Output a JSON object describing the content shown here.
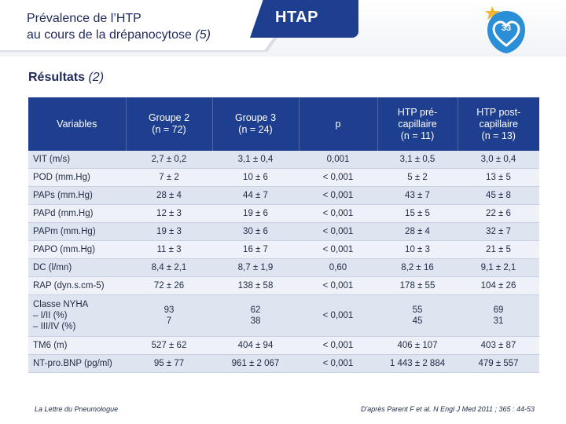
{
  "slide": {
    "title_line1": "Prévalence de l’HTP",
    "title_line2_main": "au cours de la drépanocytose",
    "title_line2_ref": " (5)",
    "topic": "HTAP",
    "page_number": "33",
    "logo_icon": "heart-badge-icon",
    "accent_color": "#1e3f8f"
  },
  "section": {
    "title": "Résultats",
    "ref": " (2)"
  },
  "table": {
    "headers": [
      [
        "Variables"
      ],
      [
        "Groupe 2",
        "(n = 72)"
      ],
      [
        "Groupe 3",
        "(n = 24)"
      ],
      [
        "p"
      ],
      [
        "HTP pré-",
        "capillaire",
        "(n = 11)"
      ],
      [
        "HTP post-",
        "capillaire",
        "(n = 13)"
      ]
    ],
    "rows": [
      {
        "label": "VIT (m/s)",
        "cells": [
          "2,7 ± 0,2",
          "3,1 ± 0,4",
          "0,001",
          "3,1 ± 0,5",
          "3,0 ± 0,4"
        ]
      },
      {
        "label": "POD (mm.Hg)",
        "cells": [
          "7 ± 2",
          "10 ± 6",
          "< 0,001",
          "5 ± 2",
          "13 ± 5"
        ]
      },
      {
        "label": "PAPs (mm.Hg)",
        "cells": [
          "28 ± 4",
          "44 ± 7",
          "< 0,001",
          "43 ± 7",
          "45 ± 8"
        ]
      },
      {
        "label": "PAPd (mm.Hg)",
        "cells": [
          "12 ± 3",
          "19 ± 6",
          "< 0,001",
          "15 ± 5",
          "22 ± 6"
        ]
      },
      {
        "label": "PAPm (mm.Hg)",
        "cells": [
          "19 ± 3",
          "30 ± 6",
          "< 0,001",
          "28 ± 4",
          "32 ± 7"
        ]
      },
      {
        "label": "PAPO (mm.Hg)",
        "cells": [
          "11 ± 3",
          "16 ± 7",
          "< 0,001",
          "10 ± 3",
          "21 ± 5"
        ]
      },
      {
        "label": "DC (l/mn)",
        "cells": [
          "8,4 ± 2,1",
          "8,7 ± 1,9",
          "0,60",
          "8,2 ± 16",
          "9,1 ± 2,1"
        ]
      },
      {
        "label": "RAP (dyn.s.cm-5)",
        "cells": [
          "72 ± 26",
          "138 ± 58",
          "< 0,001",
          "178 ± 55",
          "104 ± 26"
        ]
      },
      {
        "label_lines": [
          "Classe NYHA",
          "– I/II (%)",
          "– III/IV (%)"
        ],
        "cells_lines": [
          [
            "93",
            "7"
          ],
          [
            "62",
            "38"
          ],
          [
            "< 0,001"
          ],
          [
            "55",
            "45"
          ],
          [
            "69",
            "31"
          ]
        ]
      },
      {
        "label": "TM6 (m)",
        "cells": [
          "527 ± 62",
          "404 ± 94",
          "< 0,001",
          "406 ± 107",
          "403 ± 87"
        ]
      },
      {
        "label": "NT-pro.BNP (pg/ml)",
        "cells": [
          "95 ± 77",
          "961 ± 2 067",
          "< 0,001",
          "1 443 ± 2 884",
          "479 ± 557"
        ]
      }
    ]
  },
  "footer": {
    "left": "La Lettre du Pneumologue",
    "right": "D'après Parent F et al. N Engl J Med 2011 ; 365 : 44-53"
  }
}
